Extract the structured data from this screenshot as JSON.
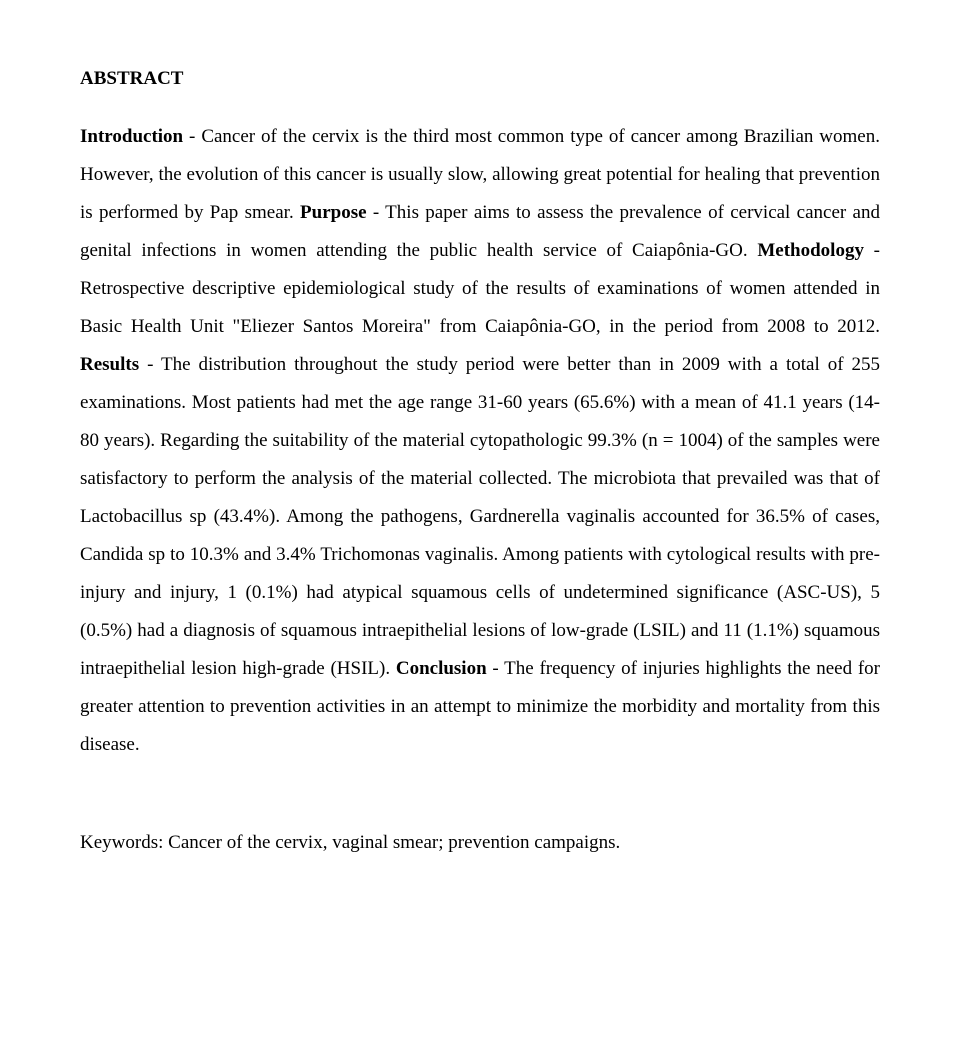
{
  "heading": "ABSTRACT",
  "sections": {
    "intro_label": "Introduction",
    "intro_text": " - Cancer of the cervix is the third most common type of cancer among Brazilian women. However, the evolution of this cancer is usually slow, allowing great potential for healing that prevention is performed by Pap smear. ",
    "purpose_label": "Purpose",
    "purpose_text": " - This paper aims to assess the prevalence of cervical cancer and genital infections in women attending the public health service of Caiapônia-GO. ",
    "methodology_label": "Methodology",
    "methodology_text": " - Retrospective descriptive epidemiological study of the results of examinations of women attended in Basic Health Unit \"Eliezer Santos Moreira\" from Caiapônia-GO, in the period from 2008 to 2012. ",
    "results_label": "Results",
    "results_text": " - The distribution throughout the study period were better than in 2009 with a total of 255 examinations. Most patients had met the age range 31-60 years (65.6%) with a mean of 41.1 years (14-80 years). Regarding the suitability of the material cytopathologic 99.3% (n = 1004) of the samples were satisfactory to perform the analysis of the material collected. The microbiota that prevailed was that of Lactobacillus sp (43.4%). Among the pathogens, Gardnerella vaginalis accounted for 36.5% of cases, Candida sp to 10.3% and 3.4% Trichomonas vaginalis. Among patients with cytological results with pre-injury and injury, 1 (0.1%) had atypical squamous cells of undetermined significance (ASC-US), 5 (0.5%) had a diagnosis of squamous intraepithelial lesions of low-grade (LSIL) and 11 (1.1%) squamous intraepithelial lesion high-grade (HSIL). ",
    "conclusion_label": "Conclusion",
    "conclusion_text": " - The frequency of injuries highlights the need for greater attention to prevention activities in an attempt to minimize the morbidity and mortality from this disease."
  },
  "keywords_label": "Keywords: ",
  "keywords_text": "Cancer of the cervix, vaginal smear; prevention campaigns."
}
